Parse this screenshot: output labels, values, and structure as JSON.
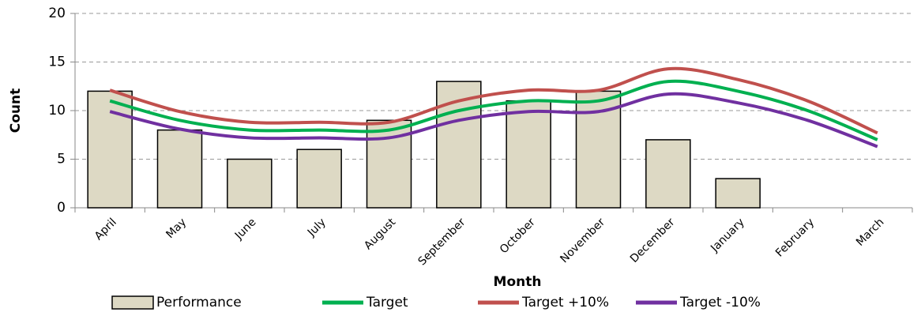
{
  "chart_data": {
    "type": "bar",
    "x_label": "Month",
    "y_label": "Count",
    "categories": [
      "April",
      "May",
      "June",
      "July",
      "August",
      "September",
      "October",
      "November",
      "December",
      "January",
      "February",
      "March"
    ],
    "series": [
      {
        "name": "Performance",
        "type": "bar",
        "color": "#ddd9c4",
        "values": [
          12,
          8,
          5,
          6,
          9,
          13,
          11,
          12,
          7,
          3,
          null,
          null
        ]
      },
      {
        "name": "Target",
        "type": "line",
        "color": "#00b050",
        "values": [
          11,
          9,
          8,
          8,
          8,
          10,
          11,
          11,
          13,
          12,
          10,
          7
        ]
      },
      {
        "name": "Target +10%",
        "type": "line",
        "color": "#c0504d",
        "values": [
          12.1,
          9.9,
          8.8,
          8.8,
          8.8,
          11,
          12.1,
          12.1,
          14.3,
          13.2,
          11,
          7.7
        ]
      },
      {
        "name": "Target -10%",
        "type": "line",
        "color": "#7030a0",
        "values": [
          9.9,
          8.1,
          7.2,
          7.2,
          7.2,
          9,
          9.9,
          9.9,
          11.7,
          10.8,
          9,
          6.3
        ]
      }
    ],
    "ylim": [
      0,
      20
    ],
    "yticks": [
      0,
      5,
      10,
      15,
      20
    ],
    "grid": true,
    "legend": "bottom"
  }
}
